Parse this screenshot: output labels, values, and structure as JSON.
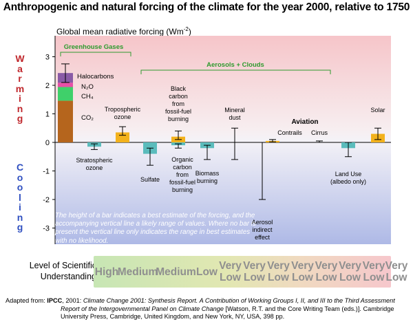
{
  "header": {
    "title": "Anthropogenic and natural forcing of the climate for the year 2000, relative to 1750",
    "subtitle": "Global mean radiative forcing (Wm"
  },
  "side": {
    "warming": [
      "W",
      "a",
      "r",
      "m",
      "i",
      "n",
      "g"
    ],
    "cooling": [
      "C",
      "o",
      "o",
      "l",
      "i",
      "n",
      "g"
    ]
  },
  "group_labels": {
    "greenhouse": "Greenhouse Gases",
    "aerosols": "Aerosols + Clouds",
    "aviation": "Aviation"
  },
  "note": "The height of a bar indicates a best estimate of the forcing, and the accompanying vertical line a likely range of values. Where no bar is present the vertical line only indicates the range in best estimates with no likelihood.",
  "level_of_understanding": {
    "label_line1": "Level of Scientific",
    "label_line2": "Understanding",
    "levels": [
      "High",
      "Medium",
      "Medium",
      "Low",
      "Very Low",
      "Very Low",
      "Very Low",
      "Very Low",
      "Very Low",
      "Very Low",
      "Very Low",
      "Very Low"
    ]
  },
  "footer": {
    "prefix": "Adapted from: ",
    "org": "IPCC",
    "rest": ", 2001: ",
    "book": "Climate Change 2001: Synthesis Report. A Contribution of Working Groups I, II, and III to the Third Assessment",
    "line2": "Report of the Intergovernmental Panel on Climate Change",
    "line2b": " [Watson, R.T. and the Core Writing Team (eds.)]. Cambridge",
    "line3": "University Press, Cambridge, United Kingdom, and New York, NY, USA, 398 pp."
  },
  "colors": {
    "warming_bg_top": "#f4c6c8",
    "cooling_bg_bottom": "#b9c2ea",
    "co2": "#b5651d",
    "ch4": "#3fd06a",
    "n2o": "#e84fa7",
    "halocarbons": "#8a5aa6",
    "orange": "#f3b21c",
    "teal": "#5bbcbc",
    "green_label": "#2e9a2e",
    "warming_text": "#c0282d",
    "cooling_text": "#2f4fc0"
  },
  "chart_data": {
    "type": "bar",
    "title": "Anthropogenic and natural forcing of the climate for the year 2000, relative to 1750",
    "ylabel": "Global mean radiative forcing (Wm-2)",
    "ylim": [
      -3.5,
      3.5
    ],
    "yticks": [
      3,
      2,
      1,
      0,
      -1,
      -2,
      -3
    ],
    "stacked_greenhouse": {
      "components": [
        {
          "name": "CO2",
          "value": 1.46
        },
        {
          "name": "CH4",
          "value": 0.48
        },
        {
          "name": "N2O",
          "value": 0.15
        },
        {
          "name": "Halocarbons",
          "value": 0.34
        }
      ],
      "range": [
        2.1,
        2.75
      ]
    },
    "bars": [
      {
        "name": "Tropospheric ozone",
        "label_lines": [
          "Tropospheric",
          "ozone"
        ],
        "value": 0.35,
        "range": [
          0.25,
          0.55
        ],
        "kind": "bar",
        "color": "orange"
      },
      {
        "name": "Stratospheric ozone",
        "label_lines": [
          "Stratospheric",
          "ozone"
        ],
        "value": -0.15,
        "range": [
          -0.25,
          -0.05
        ],
        "kind": "bar",
        "color": "teal"
      },
      {
        "name": "Sulfate",
        "label_lines": [
          "Sulfate"
        ],
        "value": -0.4,
        "range": [
          -0.8,
          -0.2
        ],
        "kind": "bar",
        "color": "teal"
      },
      {
        "name": "Black carbon from fossil-fuel burning",
        "label_lines": [
          "Black",
          "carbon",
          "from",
          "fossil-fuel",
          "burning"
        ],
        "value": 0.2,
        "range": [
          0.1,
          0.4
        ],
        "kind": "bar",
        "color": "orange"
      },
      {
        "name": "Organic carbon from fossil-fuel burning",
        "label_lines": [
          "Organic",
          "carbon",
          "from",
          "fossil-fuel",
          "burning"
        ],
        "value": -0.1,
        "range": [
          -0.2,
          -0.05
        ],
        "kind": "bar",
        "color": "teal"
      },
      {
        "name": "Biomass burning",
        "label_lines": [
          "Biomass",
          "burning"
        ],
        "value": -0.2,
        "range": [
          -0.6,
          -0.1
        ],
        "kind": "bar",
        "color": "teal"
      },
      {
        "name": "Mineral dust",
        "label_lines": [
          "Mineral",
          "dust"
        ],
        "value": null,
        "range": [
          -0.6,
          0.5
        ],
        "kind": "range"
      },
      {
        "name": "Aerosol indirect effect",
        "label_lines": [
          "Aerosol",
          "indirect",
          "effect"
        ],
        "value": null,
        "range": [
          -2.0,
          0.0
        ],
        "kind": "range"
      },
      {
        "name": "Contrails",
        "label_lines": [
          "Contrails"
        ],
        "value": 0.05,
        "range": [
          0.02,
          0.1
        ],
        "kind": "bar",
        "color": "orange"
      },
      {
        "name": "Cirrus",
        "label_lines": [
          "Cirrus"
        ],
        "value": null,
        "range": [
          0.0,
          0.05
        ],
        "kind": "range"
      },
      {
        "name": "Land Use (albedo only)",
        "label_lines": [
          "Land Use",
          "(albedo only)"
        ],
        "value": -0.2,
        "range": [
          -0.5,
          0.0
        ],
        "kind": "bar",
        "color": "teal"
      },
      {
        "name": "Solar",
        "label_lines": [
          "Solar"
        ],
        "value": 0.3,
        "range": [
          0.1,
          0.5
        ],
        "kind": "bar",
        "color": "orange"
      }
    ]
  }
}
